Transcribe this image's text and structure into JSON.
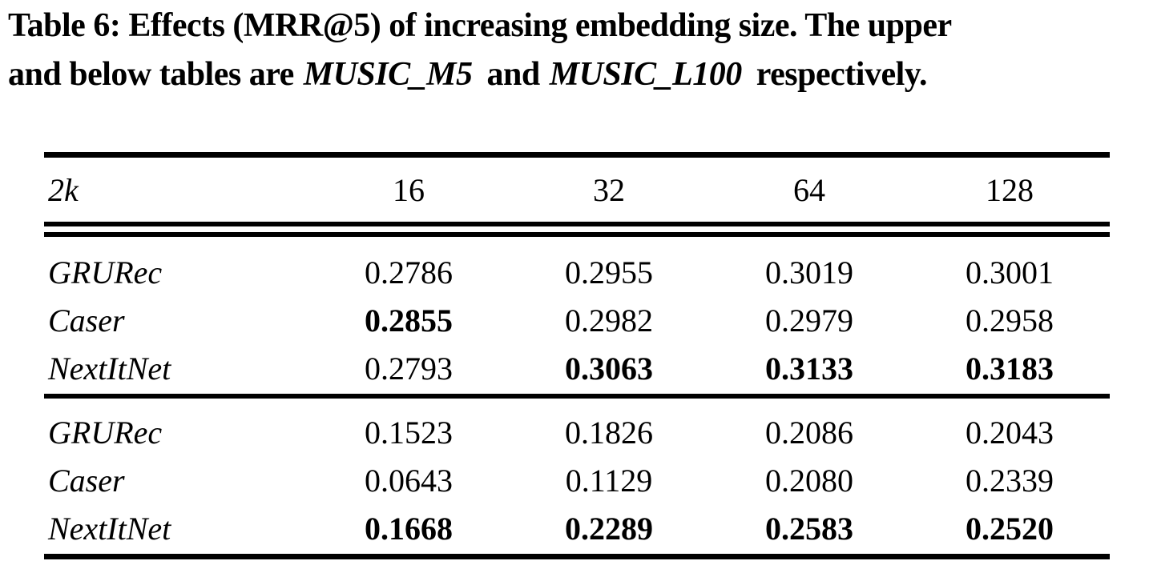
{
  "caption": {
    "table_label": "Table 6:",
    "line1_rest": " Effects (MRR@5) of increasing embedding size. The upper",
    "line2_part1": "and below tables are",
    "dataset_upper": "MUSIC_M5",
    "conjunction": "and",
    "dataset_lower": "MUSIC_L100",
    "line2_part3": "respectively."
  },
  "table": {
    "header": [
      "2k",
      "16",
      "32",
      "64",
      "128"
    ],
    "sections": [
      {
        "id": "upper",
        "rows": [
          {
            "label": "GRURec",
            "values": [
              "0.2786",
              "0.2955",
              "0.3019",
              "0.3001"
            ],
            "bold": [
              false,
              false,
              false,
              false
            ]
          },
          {
            "label": "Caser",
            "values": [
              "0.2855",
              "0.2982",
              "0.2979",
              "0.2958"
            ],
            "bold": [
              true,
              false,
              false,
              false
            ]
          },
          {
            "label": "NextItNet",
            "values": [
              "0.2793",
              "0.3063",
              "0.3133",
              "0.3183"
            ],
            "bold": [
              false,
              true,
              true,
              true
            ]
          }
        ]
      },
      {
        "id": "lower",
        "rows": [
          {
            "label": "GRURec",
            "values": [
              "0.1523",
              "0.1826",
              "0.2086",
              "0.2043"
            ],
            "bold": [
              false,
              false,
              false,
              false
            ]
          },
          {
            "label": "Caser",
            "values": [
              "0.0643",
              "0.1129",
              "0.2080",
              "0.2339"
            ],
            "bold": [
              false,
              false,
              false,
              false
            ]
          },
          {
            "label": "NextItNet",
            "values": [
              "0.1668",
              "0.2289",
              "0.2583",
              "0.2520"
            ],
            "bold": [
              true,
              true,
              true,
              true
            ]
          }
        ]
      }
    ]
  },
  "colors": {
    "text": "#000000",
    "background": "#ffffff"
  }
}
